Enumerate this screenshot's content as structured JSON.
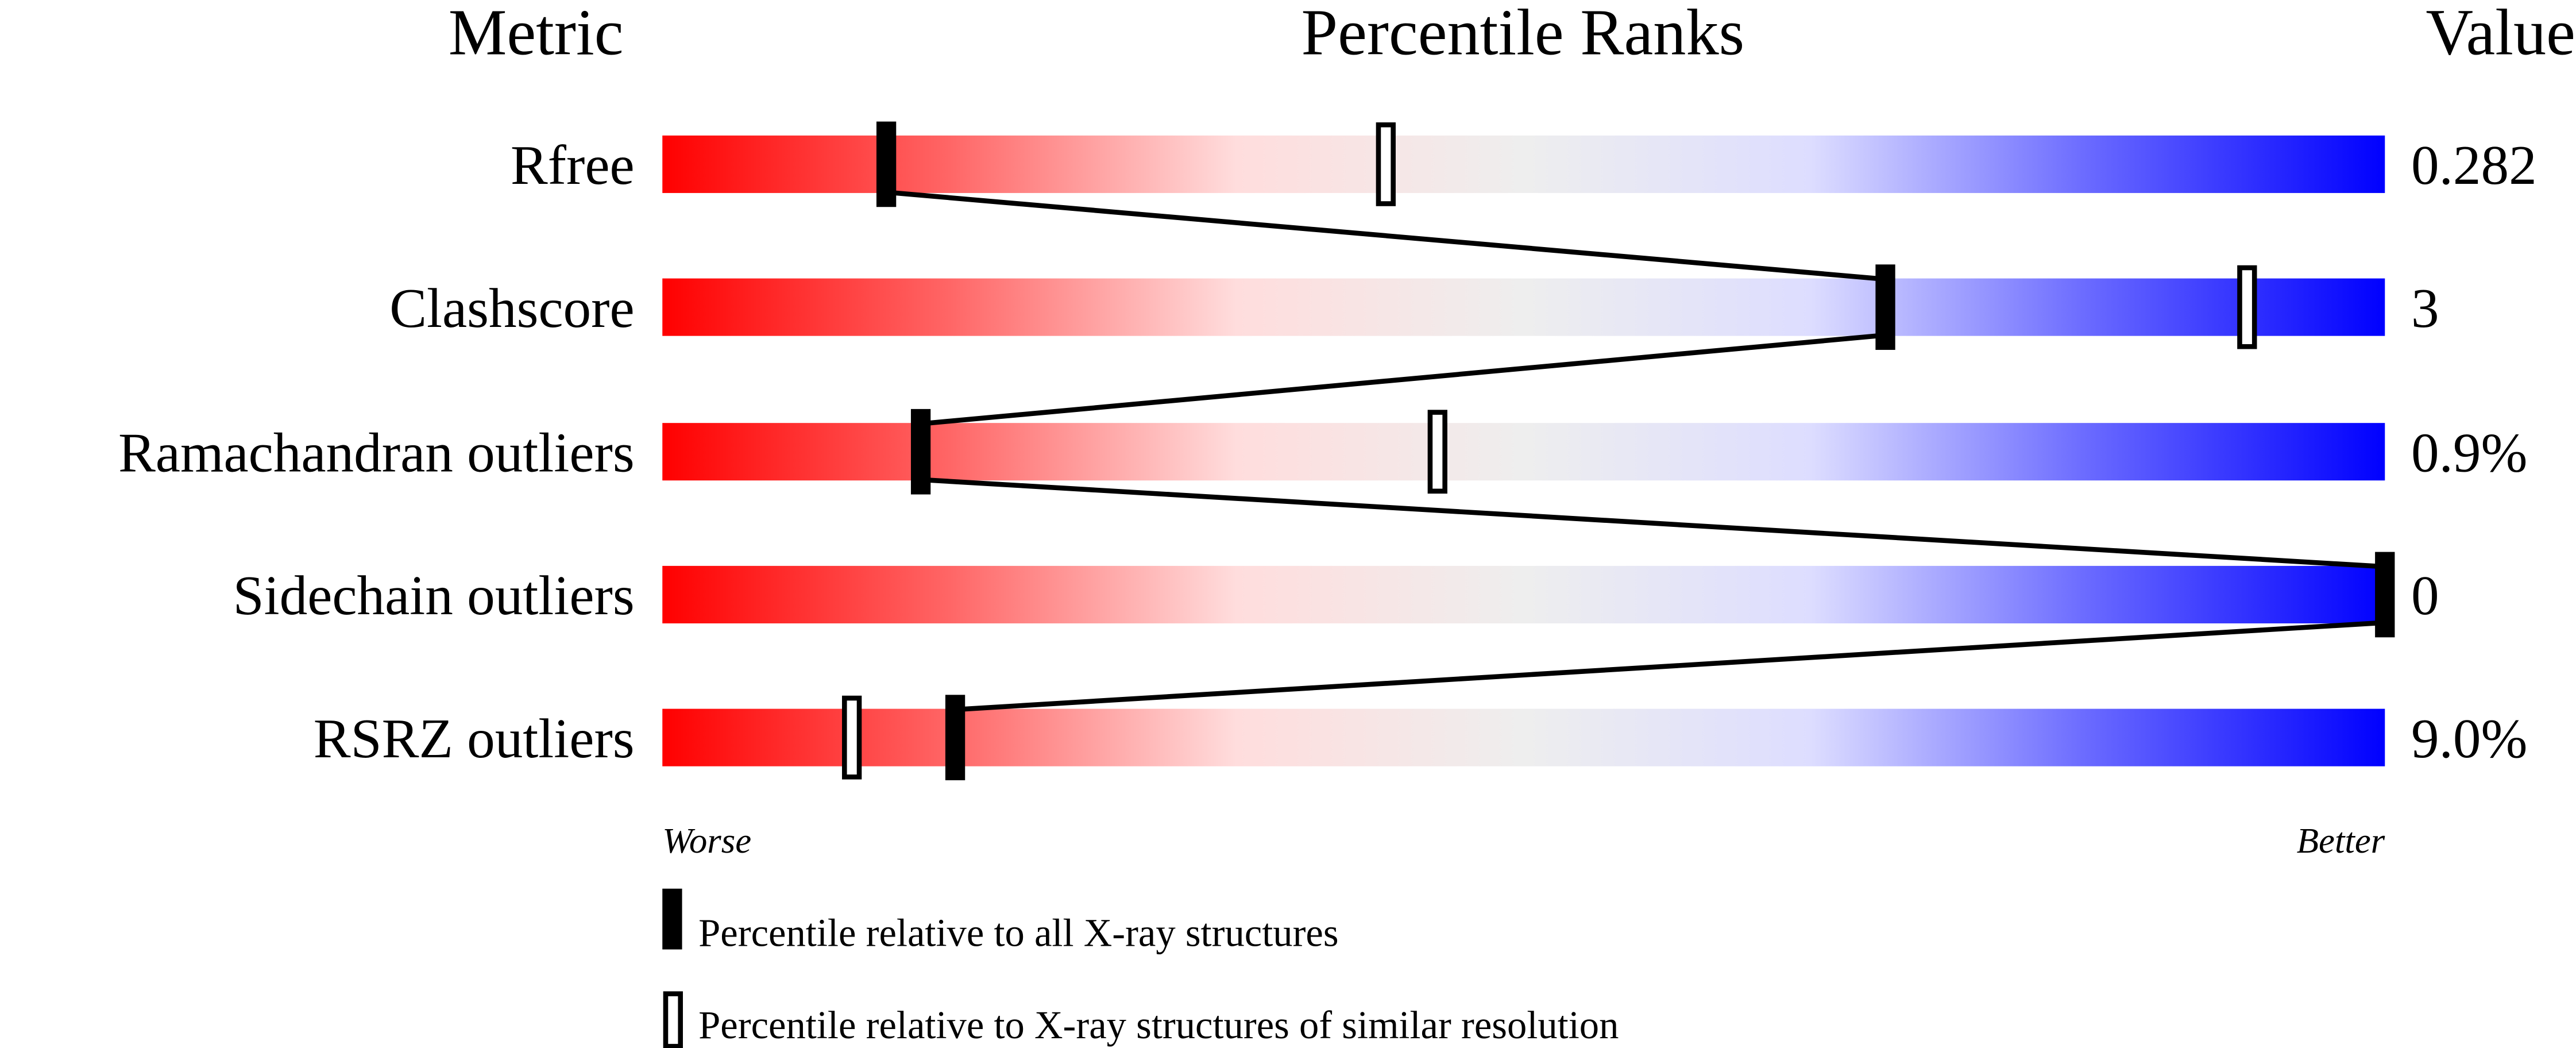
{
  "chart_data": {
    "type": "percentile-slider",
    "headers": {
      "metric": "Metric",
      "ranks": "Percentile Ranks",
      "value": "Value"
    },
    "xlim": [
      0,
      100
    ],
    "axis_labels": {
      "left": "Worse",
      "right": "Better"
    },
    "gradient_colors": [
      "#ff0000",
      "#ff6666",
      "#ffdddd",
      "#eeeeee",
      "#ddddff",
      "#6666ff",
      "#0000ff"
    ],
    "metrics": [
      {
        "name": "Rfree",
        "value": "0.282",
        "percentile_all": 13,
        "percentile_similar": 42
      },
      {
        "name": "Clashscore",
        "value": "3",
        "percentile_all": 71,
        "percentile_similar": 92
      },
      {
        "name": "Ramachandran outliers",
        "value": "0.9%",
        "percentile_all": 15,
        "percentile_similar": 45
      },
      {
        "name": "Sidechain outliers",
        "value": "0",
        "percentile_all": 100,
        "percentile_similar": 100
      },
      {
        "name": "RSRZ outliers",
        "value": "9.0%",
        "percentile_all": 17,
        "percentile_similar": 11
      }
    ],
    "legend": [
      {
        "marker": "filled",
        "label": "Percentile relative to all X-ray structures"
      },
      {
        "marker": "open",
        "label": "Percentile relative to X-ray structures of similar resolution"
      }
    ]
  }
}
